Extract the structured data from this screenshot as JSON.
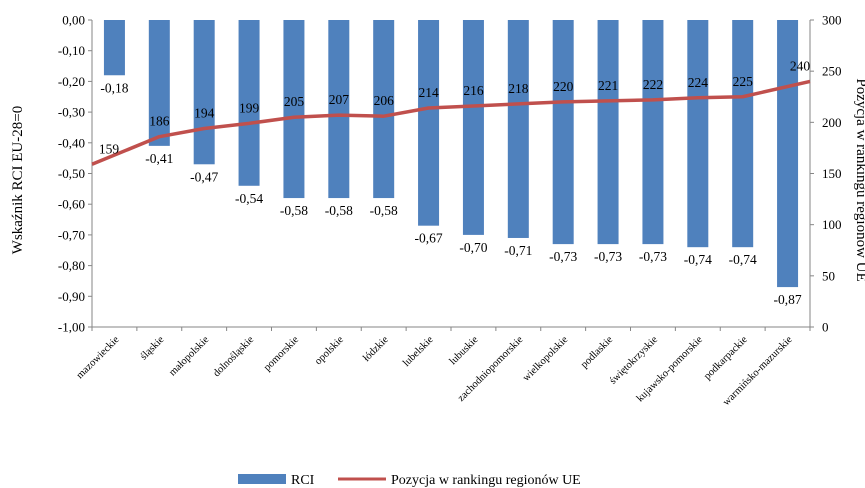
{
  "chart_data": {
    "type": "bar+line",
    "categories": [
      "mazowieckie",
      "śląskie",
      "małopolskie",
      "dolnośląskie",
      "pomorskie",
      "opolskie",
      "łódzkie",
      "lubelskie",
      "lubuskie",
      "zachodniopomorskie",
      "wielkopolskie",
      "podlaskie",
      "świętokrzyskie",
      "kujawsko-pomorskie",
      "podkarpackie",
      "warmińsko-mazurskie"
    ],
    "bar_series": {
      "name": "RCI",
      "values": [
        -0.18,
        -0.41,
        -0.47,
        -0.54,
        -0.58,
        -0.58,
        -0.58,
        -0.67,
        -0.7,
        -0.71,
        -0.73,
        -0.73,
        -0.73,
        -0.74,
        -0.74,
        -0.87
      ],
      "labels": [
        "-0,18",
        "-0,41",
        "-0,47",
        "-0,54",
        "-0,58",
        "-0,58",
        "-0,58",
        "-0,67",
        "-0,70",
        "-0,71",
        "-0,73",
        "-0,73",
        "-0,73",
        "-0,74",
        "-0,74",
        "-0,87"
      ],
      "color": "#4f81bd"
    },
    "line_series": {
      "name": "Pozycja w rankingu regionów UE",
      "values": [
        159,
        186,
        194,
        199,
        205,
        207,
        206,
        214,
        216,
        218,
        220,
        221,
        222,
        224,
        225,
        240
      ],
      "color": "#c0504d"
    },
    "ylabel_left": "Wskaźnik RCI EU-28=0",
    "ylabel_right": "Pozycja w rankingu regionów UE",
    "ylim_left": [
      -1.0,
      0.0
    ],
    "ylim_right": [
      0,
      300
    ],
    "left_ticks": [
      "0,00",
      "-0,10",
      "-0,20",
      "-0,30",
      "-0,40",
      "-0,50",
      "-0,60",
      "-0,70",
      "-0,80",
      "-0,90",
      "-1,00"
    ],
    "right_ticks": [
      "300",
      "250",
      "200",
      "150",
      "100",
      "50",
      "0"
    ],
    "grid": false,
    "legend_position": "bottom"
  },
  "legend": {
    "rci_label": "RCI",
    "rank_label": "Pozycja w rankingu regionów UE"
  }
}
